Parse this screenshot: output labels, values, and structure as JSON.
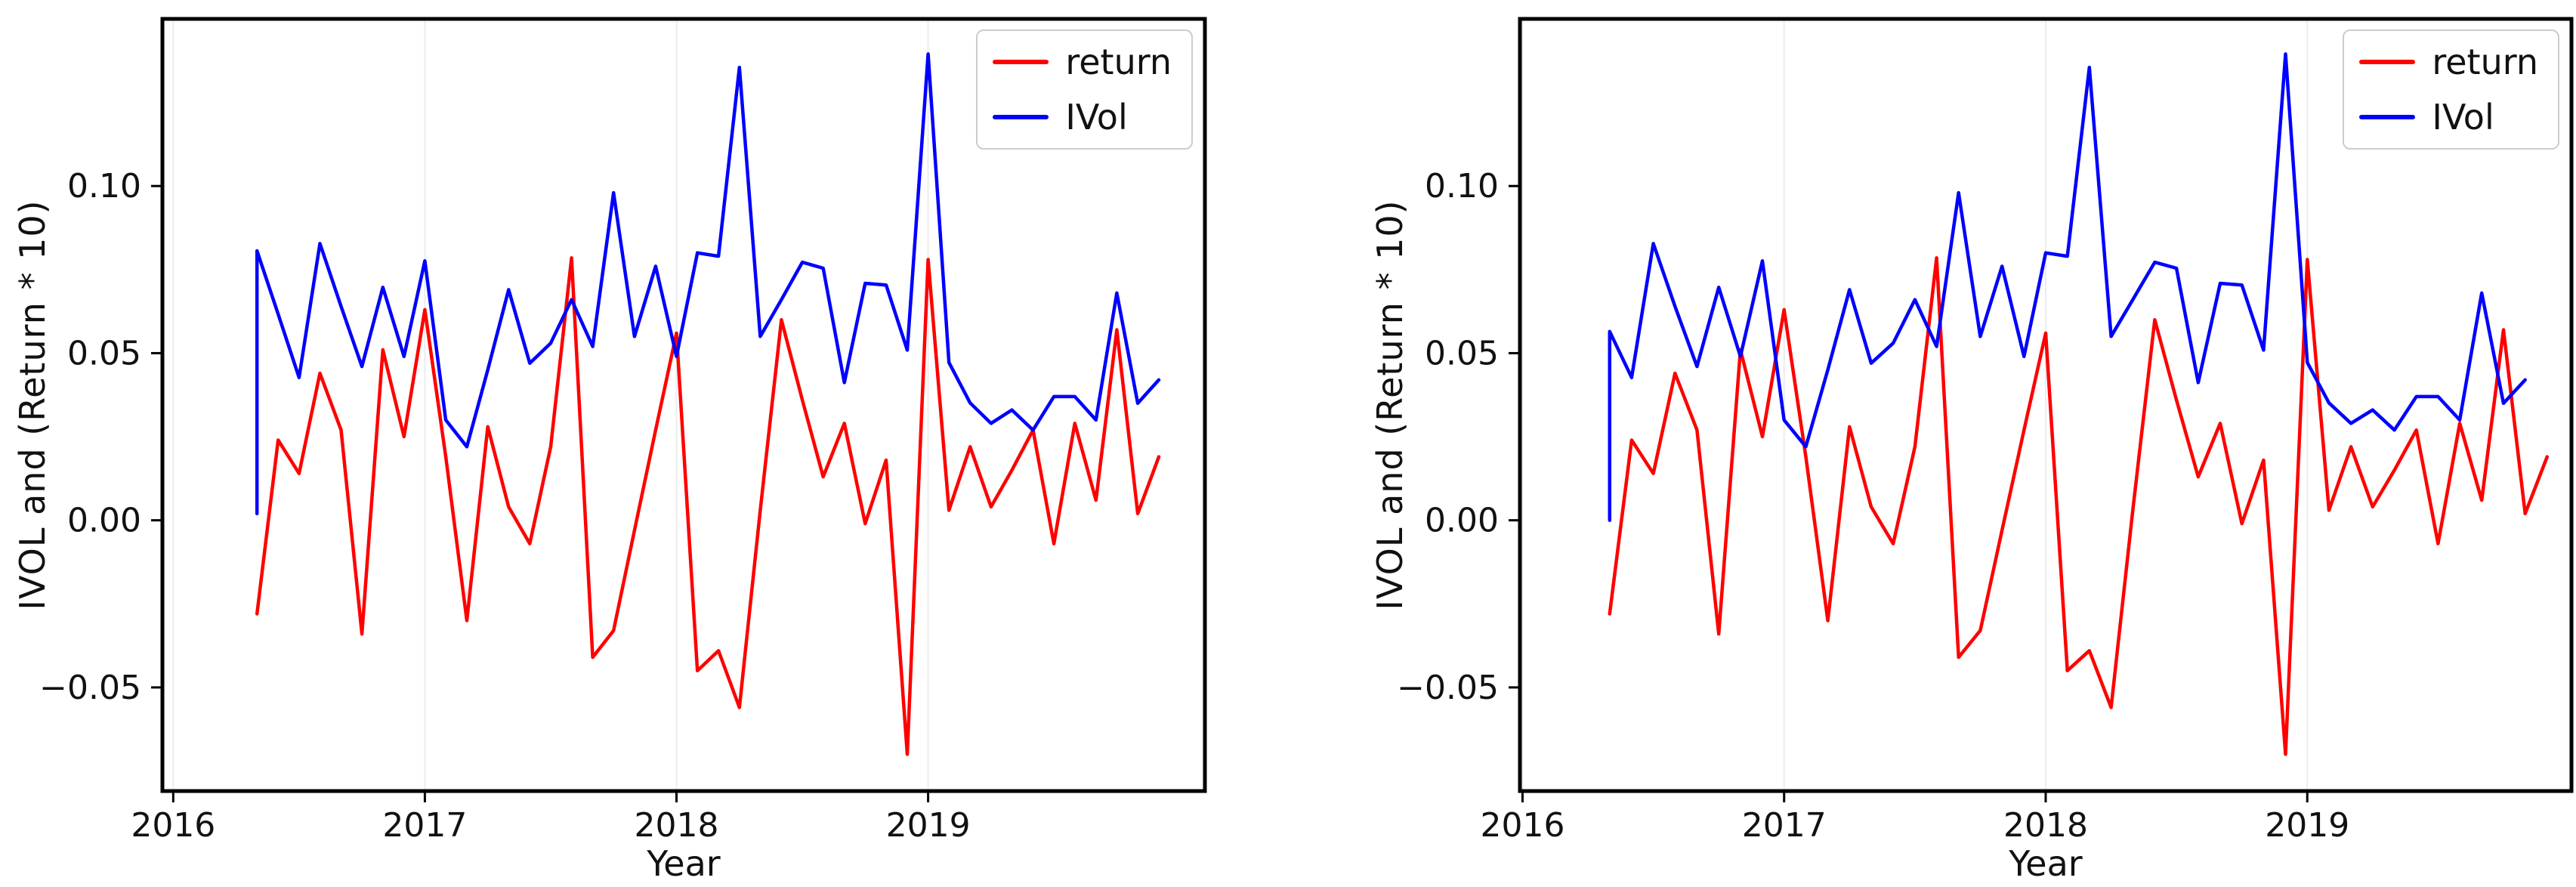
{
  "figure": {
    "background": "#ffffff",
    "grid_color": "#ececec",
    "axis_color": "#000000",
    "tick_label_color": "#111111"
  },
  "chart_data": [
    {
      "type": "line",
      "title": "",
      "xlabel": "Year",
      "ylabel": "IVOL and (Return * 10)",
      "legend_position": "upper right",
      "grid": "vertical-year-lines",
      "xlim": [
        2015.957,
        2020.1
      ],
      "ylim": [
        -0.081,
        0.15
      ],
      "xticks": {
        "values": [
          2016,
          2017,
          2018,
          2019
        ],
        "labels": [
          "2016",
          "2017",
          "2018",
          "2019"
        ]
      },
      "yticks": {
        "values": [
          -0.05,
          0.0,
          0.05,
          0.1
        ],
        "labels": [
          "−0.05",
          "0.00",
          "0.05",
          "0.10"
        ]
      },
      "series": [
        {
          "name": "return",
          "color": "#ff0000",
          "x": [
            2016.333,
            2016.417,
            2016.5,
            2016.583,
            2016.667,
            2016.75,
            2016.833,
            2016.917,
            2017.0,
            2017.083,
            2017.167,
            2017.25,
            2017.333,
            2017.417,
            2017.5,
            2017.583,
            2017.667,
            2017.75,
            2017.833,
            2017.917,
            2018.0,
            2018.083,
            2018.167,
            2018.25,
            2018.333,
            2018.417,
            2018.5,
            2018.583,
            2018.667,
            2018.75,
            2018.833,
            2018.917,
            2019.0,
            2019.083,
            2019.167,
            2019.25,
            2019.333,
            2019.417,
            2019.5,
            2019.583,
            2019.667,
            2019.75,
            2019.833,
            2019.917
          ],
          "y": [
            -0.028,
            0.024,
            0.014,
            0.044,
            0.027,
            -0.034,
            0.051,
            0.025,
            0.063,
            0.019,
            -0.03,
            0.028,
            0.004,
            -0.007,
            0.022,
            0.0785,
            -0.041,
            -0.033,
            -0.003,
            0.027,
            0.056,
            -0.045,
            -0.039,
            -0.056,
            0.003,
            0.06,
            0.036,
            0.013,
            0.029,
            -0.001,
            0.018,
            -0.07,
            0.078,
            0.003,
            0.022,
            0.004,
            0.015,
            0.027,
            -0.007,
            0.029,
            0.006,
            0.057,
            0.002,
            0.019
          ]
        },
        {
          "name": "IVol",
          "color": "#0000ff",
          "x": [
            2016.333,
            2016.333,
            2016.417,
            2016.5,
            2016.583,
            2016.667,
            2016.75,
            2016.833,
            2016.917,
            2017.0,
            2017.083,
            2017.167,
            2017.25,
            2017.333,
            2017.417,
            2017.5,
            2017.583,
            2017.667,
            2017.75,
            2017.833,
            2017.917,
            2018.0,
            2018.083,
            2018.167,
            2018.25,
            2018.333,
            2018.417,
            2018.5,
            2018.583,
            2018.667,
            2018.75,
            2018.833,
            2018.917,
            2019.0,
            2019.083,
            2019.167,
            2019.25,
            2019.333,
            2019.417,
            2019.5,
            2019.583,
            2019.667,
            2019.75,
            2019.833,
            2019.917
          ],
          "y": [
            0.002,
            0.0806,
            0.0617,
            0.0427,
            0.0828,
            0.064,
            0.046,
            0.0697,
            0.049,
            0.0776,
            0.03,
            0.022,
            0.045,
            0.069,
            0.047,
            0.053,
            0.066,
            0.052,
            0.098,
            0.055,
            0.076,
            0.049,
            0.08,
            0.079,
            0.1355,
            0.055,
            0.066,
            0.0772,
            0.0754,
            0.0412,
            0.0709,
            0.0704,
            0.0509,
            0.1395,
            0.0472,
            0.0351,
            0.029,
            0.033,
            0.027,
            0.037,
            0.037,
            0.03,
            0.068,
            0.035,
            0.042
          ]
        }
      ]
    },
    {
      "type": "line",
      "title": "",
      "xlabel": "Year",
      "ylabel": "IVOL and (Return * 10)",
      "legend_position": "upper right",
      "grid": "vertical-year-lines",
      "xlim": [
        2015.99,
        2020.01
      ],
      "ylim": [
        -0.081,
        0.15
      ],
      "xticks": {
        "values": [
          2016,
          2017,
          2018,
          2019
        ],
        "labels": [
          "2016",
          "2017",
          "2018",
          "2019"
        ]
      },
      "yticks": {
        "values": [
          -0.05,
          0.0,
          0.05,
          0.1
        ],
        "labels": [
          "−0.05",
          "0.00",
          "0.05",
          "0.10"
        ]
      },
      "series": [
        {
          "name": "return",
          "color": "#ff0000",
          "x": [
            2016.333,
            2016.417,
            2016.5,
            2016.583,
            2016.667,
            2016.75,
            2016.833,
            2016.917,
            2017.0,
            2017.083,
            2017.167,
            2017.25,
            2017.333,
            2017.417,
            2017.5,
            2017.583,
            2017.667,
            2017.75,
            2017.833,
            2017.917,
            2018.0,
            2018.083,
            2018.167,
            2018.25,
            2018.333,
            2018.417,
            2018.5,
            2018.583,
            2018.667,
            2018.75,
            2018.833,
            2018.917,
            2019.0,
            2019.083,
            2019.167,
            2019.25,
            2019.333,
            2019.417,
            2019.5,
            2019.583,
            2019.667,
            2019.75,
            2019.833,
            2019.917
          ],
          "y": [
            -0.028,
            0.024,
            0.014,
            0.044,
            0.027,
            -0.034,
            0.051,
            0.025,
            0.063,
            0.019,
            -0.03,
            0.028,
            0.004,
            -0.007,
            0.022,
            0.0785,
            -0.041,
            -0.033,
            -0.003,
            0.027,
            0.056,
            -0.045,
            -0.039,
            -0.056,
            0.003,
            0.06,
            0.036,
            0.013,
            0.029,
            -0.001,
            0.018,
            -0.07,
            0.078,
            0.003,
            0.022,
            0.004,
            0.015,
            0.027,
            -0.007,
            0.029,
            0.006,
            0.057,
            0.002,
            0.019
          ]
        },
        {
          "name": "IVol",
          "color": "#0000ff",
          "x": [
            2016.333,
            2016.333,
            2016.417,
            2016.5,
            2016.583,
            2016.667,
            2016.75,
            2016.833,
            2016.917,
            2017.0,
            2017.083,
            2017.167,
            2017.25,
            2017.333,
            2017.417,
            2017.5,
            2017.583,
            2017.667,
            2017.75,
            2017.833,
            2017.917,
            2018.0,
            2018.083,
            2018.167,
            2018.25,
            2018.333,
            2018.417,
            2018.5,
            2018.583,
            2018.667,
            2018.75,
            2018.833,
            2018.917,
            2019.0,
            2019.083,
            2019.167,
            2019.25,
            2019.333,
            2019.417,
            2019.5,
            2019.583,
            2019.667,
            2019.75,
            2019.833
          ],
          "y": [
            0.0,
            0.0565,
            0.0427,
            0.0828,
            0.064,
            0.046,
            0.0697,
            0.049,
            0.0776,
            0.03,
            0.022,
            0.045,
            0.069,
            0.047,
            0.053,
            0.066,
            0.052,
            0.098,
            0.055,
            0.076,
            0.049,
            0.08,
            0.079,
            0.1355,
            0.055,
            0.066,
            0.0772,
            0.0754,
            0.0412,
            0.0709,
            0.0704,
            0.0509,
            0.1395,
            0.0472,
            0.0351,
            0.029,
            0.033,
            0.027,
            0.037,
            0.037,
            0.03,
            0.068,
            0.035,
            0.042
          ]
        }
      ]
    }
  ]
}
